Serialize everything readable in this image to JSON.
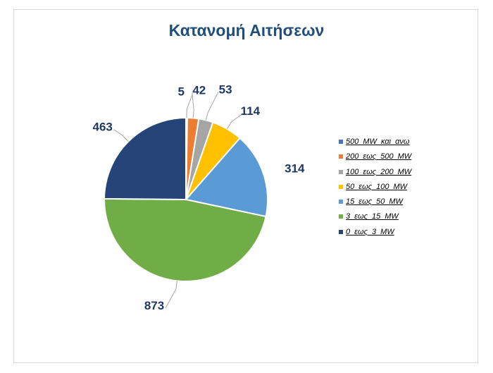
{
  "chart_data": {
    "type": "pie",
    "title": "Κατανομή Αιτήσεων",
    "categories": [
      "500 MW  και ανω",
      "200  εως  500  MW",
      "100  εως  200  MW",
      "50  εως  100  MW",
      "15  εως  50  MW",
      "3  εως  15  MW",
      "0  εως  3  MW"
    ],
    "values": [
      5,
      42,
      53,
      114,
      314,
      873,
      463
    ],
    "colors": [
      "#4472c4",
      "#ed7d31",
      "#a5a5a5",
      "#ffc000",
      "#5b9bd5",
      "#70ad47",
      "#264478"
    ],
    "data_labels": [
      "5",
      "42",
      "53",
      "114",
      "314",
      "873",
      "463"
    ],
    "legend_position": "right",
    "start_angle": "12 o'clock",
    "direction": "clockwise"
  }
}
